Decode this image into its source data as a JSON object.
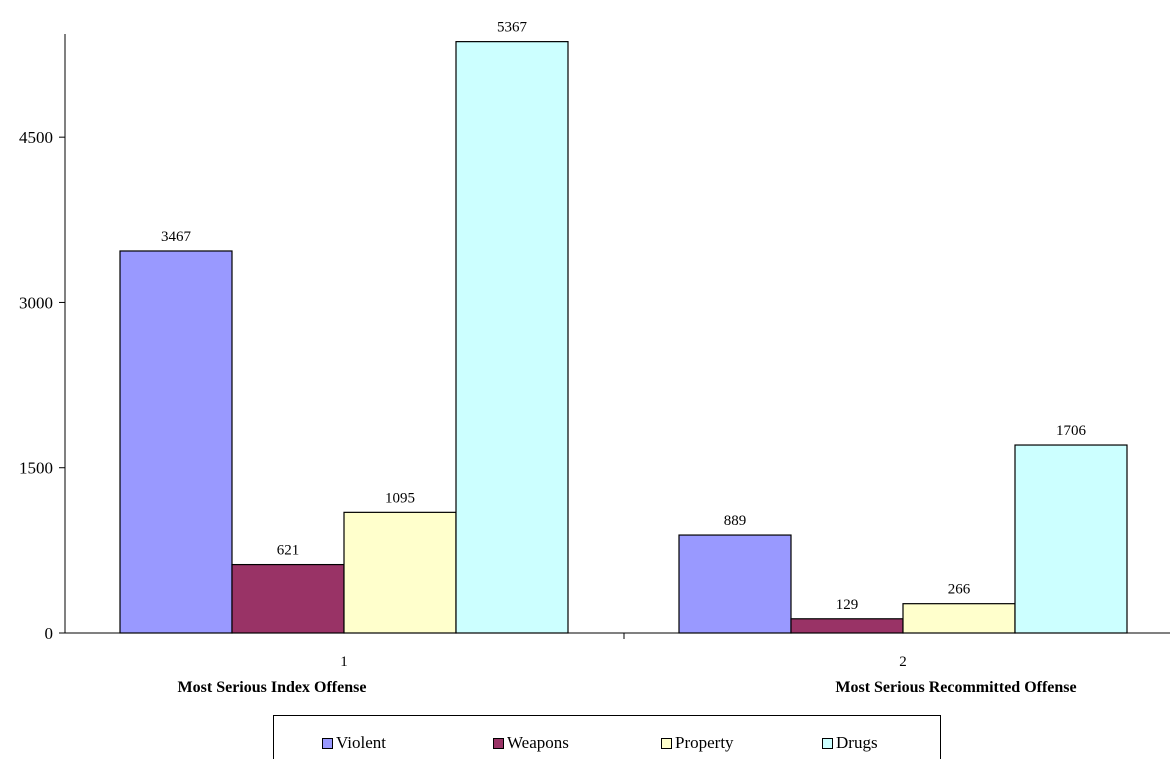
{
  "chart_data": {
    "type": "bar",
    "title": "",
    "xlabel": "",
    "ylabel": "",
    "ylim": [
      0,
      5400
    ],
    "yticks": [
      0,
      1500,
      3000,
      4500
    ],
    "ytick_labels": [
      "0",
      "1500",
      "3000",
      "4500"
    ],
    "grid": false,
    "legend_position": "bottom",
    "categories": [
      "1",
      "2"
    ],
    "category_labels": [
      "Most Serious Index Offense",
      "Most Serious Recommitted Offense"
    ],
    "series": [
      {
        "name": "Violent",
        "values": [
          3467,
          889
        ],
        "color": "#9999ff"
      },
      {
        "name": "Weapons",
        "values": [
          621,
          129
        ],
        "color": "#993366"
      },
      {
        "name": "Property",
        "values": [
          1095,
          266
        ],
        "color": "#ffffcc"
      },
      {
        "name": "Drugs",
        "values": [
          5367,
          1706
        ],
        "color": "#ccffff"
      }
    ]
  }
}
